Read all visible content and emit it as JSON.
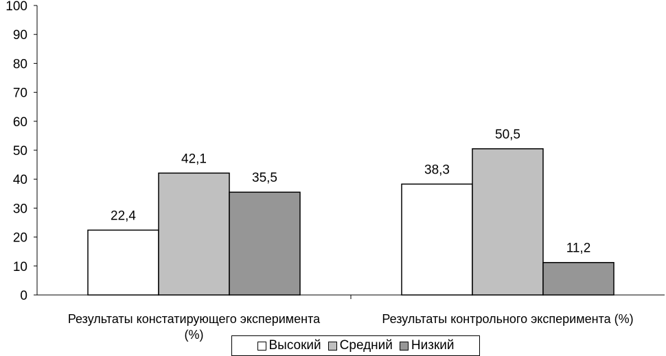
{
  "chart_data": {
    "type": "bar",
    "categories": [
      "Результаты констатирующего эксперимента (%)",
      "Результаты контрольного эксперимента (%)"
    ],
    "category_label_lines": [
      [
        "Результаты констатирующего эксперимента",
        "(%)"
      ],
      [
        "Результаты контрольного эксперимента (%)"
      ]
    ],
    "series": [
      {
        "name": "Высокий",
        "values": [
          22.4,
          38.3
        ],
        "labels": [
          "22,4",
          "38,3"
        ],
        "color": "#ffffff"
      },
      {
        "name": "Средний",
        "values": [
          42.1,
          50.5
        ],
        "labels": [
          "42,1",
          "50,5"
        ],
        "color": "#c0c0c0"
      },
      {
        "name": "Низкий",
        "values": [
          35.5,
          11.2
        ],
        "labels": [
          "35,5",
          "11,2"
        ],
        "color": "#969696"
      }
    ],
    "yticks": [
      "0",
      "10",
      "20",
      "30",
      "40",
      "50",
      "60",
      "70",
      "80",
      "90",
      "100"
    ],
    "ylim": [
      0,
      100
    ],
    "grid": false,
    "legend_position": "bottom",
    "title": "",
    "xlabel": "",
    "ylabel": ""
  }
}
